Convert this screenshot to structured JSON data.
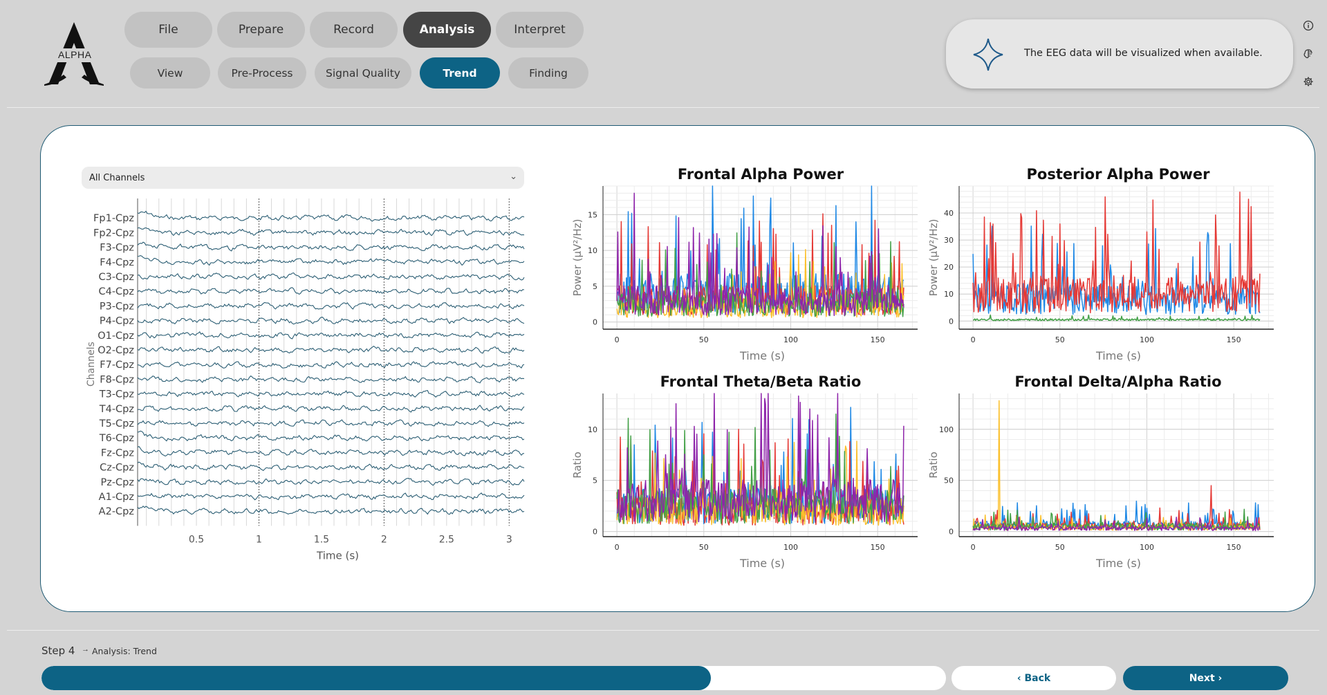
{
  "logo": {
    "text": "ALPHA"
  },
  "nav": {
    "main_tabs": [
      "File",
      "Prepare",
      "Record",
      "Analysis",
      "Interpret"
    ],
    "active_main": "Analysis",
    "sub_tabs": [
      "View",
      "Pre-Process",
      "Signal Quality",
      "Trend",
      "Finding"
    ],
    "active_sub": "Trend"
  },
  "notification": {
    "text": "The EEG data will be visualized when available.",
    "icon": "sparkle-icon"
  },
  "side_icons": [
    "info-icon",
    "brain-icon",
    "gear-icon"
  ],
  "channel_select": {
    "value": "All Channels"
  },
  "eeg": {
    "channels": [
      "Fp1-Cpz",
      "Fp2-Cpz",
      "F3-Cpz",
      "F4-Cpz",
      "C3-Cpz",
      "C4-Cpz",
      "P3-Cpz",
      "P4-Cpz",
      "O1-Cpz",
      "O2-Cpz",
      "F7-Cpz",
      "F8-Cpz",
      "T3-Cpz",
      "T4-Cpz",
      "T5-Cpz",
      "T6-Cpz",
      "Fz-Cpz",
      "Cz-Cpz",
      "Pz-Cpz",
      "A1-Cpz",
      "A2-Cpz"
    ],
    "ylabel": "Channels",
    "xlabel": "Time (s)",
    "xticks": [
      "0.5",
      "1",
      "1.5",
      "2",
      "2.5",
      "3"
    ]
  },
  "chart_data": [
    {
      "type": "line",
      "title": "Frontal Alpha Power",
      "xlabel": "Time (s)",
      "ylabel": "Power (µV²/Hz)",
      "xlim": [
        -8,
        173
      ],
      "ylim": [
        -1,
        19
      ],
      "xticks": [
        0,
        50,
        100,
        150
      ],
      "yticks": [
        0,
        5,
        10,
        15
      ],
      "series": [
        {
          "color": "#1e88e5",
          "base": 4
        },
        {
          "color": "#e53935",
          "base": 3
        },
        {
          "color": "#fbc02d",
          "base": 2
        },
        {
          "color": "#43a047",
          "base": 2.5
        },
        {
          "color": "#8e24aa",
          "base": 3
        }
      ],
      "peaks": [
        {
          "x": 10,
          "y": 18,
          "color": "#8e24aa"
        },
        {
          "x": 118,
          "y": 12,
          "color": "#1e88e5"
        }
      ]
    },
    {
      "type": "line",
      "title": "Posterior Alpha Power",
      "xlabel": "Time (s)",
      "ylabel": "Power (µV²/Hz)",
      "xlim": [
        -8,
        173
      ],
      "ylim": [
        -3,
        50
      ],
      "xticks": [
        0,
        50,
        100,
        150
      ],
      "yticks": [
        0,
        10,
        20,
        30,
        40
      ],
      "series": [
        {
          "color": "#1e88e5",
          "base": 8
        },
        {
          "color": "#e53935",
          "base": 10
        },
        {
          "color": "#43a047",
          "base": 0.5
        }
      ],
      "peaks": [
        {
          "x": 76,
          "y": 46,
          "color": "#e53935"
        },
        {
          "x": 50,
          "y": 36,
          "color": "#e53935"
        }
      ]
    },
    {
      "type": "line",
      "title": "Frontal Theta/Beta Ratio",
      "xlabel": "Time (s)",
      "ylabel": "Ratio",
      "xlim": [
        -8,
        173
      ],
      "ylim": [
        -0.5,
        13.5
      ],
      "xticks": [
        0,
        50,
        100,
        150
      ],
      "yticks": [
        0,
        5,
        10
      ],
      "series": [
        {
          "color": "#1e88e5",
          "base": 2.5
        },
        {
          "color": "#e53935",
          "base": 2
        },
        {
          "color": "#fbc02d",
          "base": 2
        },
        {
          "color": "#43a047",
          "base": 2.5
        },
        {
          "color": "#8e24aa",
          "base": 3
        }
      ],
      "peaks": [
        {
          "x": 34,
          "y": 12.5,
          "color": "#8e24aa"
        },
        {
          "x": 70,
          "y": 10,
          "color": "#e53935"
        }
      ]
    },
    {
      "type": "line",
      "title": "Frontal Delta/Alpha Ratio",
      "xlabel": "Time (s)",
      "ylabel": "Ratio",
      "xlim": [
        -8,
        173
      ],
      "ylim": [
        -5,
        135
      ],
      "xticks": [
        0,
        50,
        100,
        150
      ],
      "yticks": [
        0,
        50,
        100
      ],
      "series": [
        {
          "color": "#1e88e5",
          "base": 6
        },
        {
          "color": "#e53935",
          "base": 5
        },
        {
          "color": "#fbc02d",
          "base": 4
        },
        {
          "color": "#43a047",
          "base": 5
        },
        {
          "color": "#8e24aa",
          "base": 3
        }
      ],
      "peaks": [
        {
          "x": 15,
          "y": 128,
          "color": "#fbc02d"
        },
        {
          "x": 137,
          "y": 45,
          "color": "#e53935"
        }
      ]
    }
  ],
  "footer": {
    "step": "Step 4",
    "step_detail": "Analysis: Trend",
    "progress": 0.74,
    "back_label": "‹ Back",
    "next_label": "Next ›"
  }
}
